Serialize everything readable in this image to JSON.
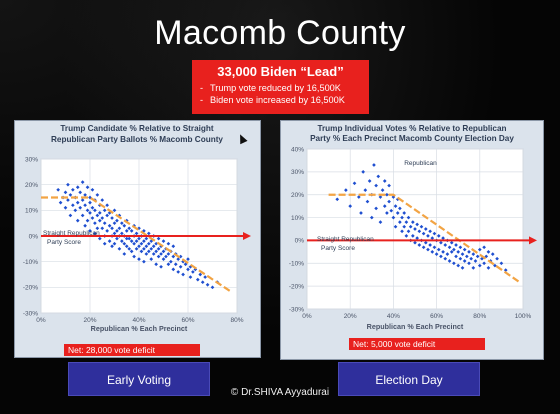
{
  "slide": {
    "title": "Macomb County",
    "lead_heading": "33,000 Biden “Lead”",
    "lead_bullets": [
      "Trump vote reduced by 16,500K",
      "Biden vote increased by 16,500K"
    ],
    "credit": "© Dr.SHIVA Ayyadurai",
    "buttons": {
      "early": "Early Voting",
      "election": "Election Day"
    },
    "net": {
      "left": "Net:  28,000 vote deficit",
      "right": "Net:  5,000 vote deficit"
    }
  },
  "colors": {
    "red": "#e8211e",
    "point_blue": "#1f4fd0",
    "trend_orange": "#f2a444",
    "button_blue": "#2f2f9c"
  },
  "chart_data": [
    {
      "type": "scatter",
      "title_lines": [
        "Trump Candidate % Relative to Straight",
        "Republican Party Ballots % Macomb County"
      ],
      "xlabel": "Republican % Each Precinct",
      "ylabel": "",
      "xlim": [
        0,
        80
      ],
      "ylim": [
        -30,
        30
      ],
      "x_ticks": [
        "0%",
        "20%",
        "40%",
        "60%",
        "80%"
      ],
      "x_tick_values": [
        0,
        20,
        40,
        60,
        80
      ],
      "y_ticks": [
        "30%",
        "20%",
        "10%",
        "0%",
        "-10%",
        "-20%",
        "-30%"
      ],
      "y_tick_values": [
        30,
        20,
        10,
        0,
        -10,
        -20,
        -30
      ],
      "annotation": [
        "Straight Republican",
        "Party Score"
      ],
      "reference_line_y": 0,
      "trend_line": [
        [
          0,
          15
        ],
        [
          20,
          15
        ],
        [
          78,
          -22
        ]
      ],
      "grid": true,
      "points": [
        [
          7,
          18
        ],
        [
          8,
          13
        ],
        [
          9,
          15
        ],
        [
          10,
          17
        ],
        [
          10,
          11
        ],
        [
          11,
          20
        ],
        [
          11,
          14
        ],
        [
          12,
          16
        ],
        [
          12,
          8
        ],
        [
          13,
          18
        ],
        [
          13,
          12
        ],
        [
          14,
          15
        ],
        [
          14,
          10
        ],
        [
          15,
          19
        ],
        [
          15,
          13
        ],
        [
          15,
          6
        ],
        [
          16,
          17
        ],
        [
          16,
          11
        ],
        [
          17,
          21
        ],
        [
          17,
          14
        ],
        [
          17,
          8
        ],
        [
          18,
          16
        ],
        [
          18,
          12
        ],
        [
          18,
          4
        ],
        [
          19,
          19
        ],
        [
          19,
          10
        ],
        [
          19,
          6
        ],
        [
          20,
          15
        ],
        [
          20,
          13
        ],
        [
          20,
          9
        ],
        [
          20,
          2
        ],
        [
          21,
          18
        ],
        [
          21,
          11
        ],
        [
          21,
          7
        ],
        [
          22,
          14
        ],
        [
          22,
          10
        ],
        [
          22,
          5
        ],
        [
          22,
          1
        ],
        [
          23,
          16
        ],
        [
          23,
          8
        ],
        [
          23,
          3
        ],
        [
          24,
          12
        ],
        [
          24,
          9
        ],
        [
          24,
          6
        ],
        [
          24,
          -1
        ],
        [
          25,
          14
        ],
        [
          25,
          7
        ],
        [
          25,
          3
        ],
        [
          26,
          10
        ],
        [
          26,
          5
        ],
        [
          26,
          0
        ],
        [
          26,
          -3
        ],
        [
          27,
          12
        ],
        [
          27,
          8
        ],
        [
          27,
          2
        ],
        [
          28,
          9
        ],
        [
          28,
          4
        ],
        [
          28,
          -2
        ],
        [
          29,
          7
        ],
        [
          29,
          3
        ],
        [
          29,
          0
        ],
        [
          29,
          -4
        ],
        [
          30,
          10
        ],
        [
          30,
          5
        ],
        [
          30,
          1
        ],
        [
          30,
          -3
        ],
        [
          31,
          6
        ],
        [
          31,
          2
        ],
        [
          31,
          -1
        ],
        [
          32,
          8
        ],
        [
          32,
          3
        ],
        [
          32,
          0
        ],
        [
          32,
          -5
        ],
        [
          33,
          5
        ],
        [
          33,
          1
        ],
        [
          33,
          -2
        ],
        [
          34,
          4
        ],
        [
          34,
          0
        ],
        [
          34,
          -3
        ],
        [
          34,
          -7
        ],
        [
          35,
          6
        ],
        [
          35,
          2
        ],
        [
          35,
          -1
        ],
        [
          35,
          -4
        ],
        [
          36,
          3
        ],
        [
          36,
          -1
        ],
        [
          36,
          -5
        ],
        [
          37,
          2
        ],
        [
          37,
          -2
        ],
        [
          37,
          -6
        ],
        [
          38,
          4
        ],
        [
          38,
          0
        ],
        [
          38,
          -3
        ],
        [
          38,
          -8
        ],
        [
          39,
          1
        ],
        [
          39,
          -2
        ],
        [
          39,
          -5
        ],
        [
          40,
          3
        ],
        [
          40,
          -1
        ],
        [
          40,
          -4
        ],
        [
          40,
          -9
        ],
        [
          41,
          0
        ],
        [
          41,
          -3
        ],
        [
          41,
          -6
        ],
        [
          42,
          2
        ],
        [
          42,
          -2
        ],
        [
          42,
          -5
        ],
        [
          42,
          -10
        ],
        [
          43,
          -1
        ],
        [
          43,
          -4
        ],
        [
          43,
          -7
        ],
        [
          44,
          1
        ],
        [
          44,
          -3
        ],
        [
          44,
          -6
        ],
        [
          45,
          -2
        ],
        [
          45,
          -5
        ],
        [
          45,
          -9
        ],
        [
          46,
          0
        ],
        [
          46,
          -4
        ],
        [
          46,
          -7
        ],
        [
          47,
          -3
        ],
        [
          47,
          -6
        ],
        [
          47,
          -11
        ],
        [
          48,
          -1
        ],
        [
          48,
          -5
        ],
        [
          48,
          -8
        ],
        [
          49,
          -4
        ],
        [
          49,
          -7
        ],
        [
          49,
          -12
        ],
        [
          50,
          -2
        ],
        [
          50,
          -6
        ],
        [
          50,
          -9
        ],
        [
          51,
          -5
        ],
        [
          51,
          -8
        ],
        [
          52,
          -3
        ],
        [
          52,
          -7
        ],
        [
          52,
          -11
        ],
        [
          53,
          -6
        ],
        [
          53,
          -10
        ],
        [
          54,
          -4
        ],
        [
          54,
          -8
        ],
        [
          54,
          -13
        ],
        [
          55,
          -7
        ],
        [
          55,
          -11
        ],
        [
          56,
          -9
        ],
        [
          56,
          -14
        ],
        [
          57,
          -8
        ],
        [
          57,
          -12
        ],
        [
          58,
          -10
        ],
        [
          58,
          -15
        ],
        [
          59,
          -11
        ],
        [
          60,
          -9
        ],
        [
          60,
          -13
        ],
        [
          61,
          -12
        ],
        [
          61,
          -16
        ],
        [
          62,
          -14
        ],
        [
          63,
          -13
        ],
        [
          64,
          -17
        ],
        [
          65,
          -15
        ],
        [
          66,
          -18
        ],
        [
          67,
          -16
        ],
        [
          68,
          -19
        ],
        [
          70,
          -20
        ],
        [
          72,
          -18
        ]
      ]
    },
    {
      "type": "scatter",
      "title_lines": [
        "Trump Individual Votes % Relative to Republican",
        "Party % Each Precinct Macomb County Election Day"
      ],
      "xlabel": "Republican % Each Precinct",
      "ylabel": "",
      "xlim": [
        0,
        100
      ],
      "ylim": [
        -30,
        40
      ],
      "x_ticks": [
        "0%",
        "20%",
        "40%",
        "60%",
        "80%",
        "100%"
      ],
      "x_tick_values": [
        0,
        20,
        40,
        60,
        80,
        100
      ],
      "y_ticks": [
        "40%",
        "30%",
        "20%",
        "10%",
        "0%",
        "-10%",
        "-20%",
        "-30%"
      ],
      "y_tick_values": [
        40,
        30,
        20,
        10,
        0,
        -10,
        -20,
        -30
      ],
      "annotation": [
        "Straight Republican",
        "Party Score"
      ],
      "series_label": "Republican",
      "reference_line_y": 0,
      "trend_line": [
        [
          10,
          20
        ],
        [
          40,
          20
        ],
        [
          98,
          -18
        ]
      ],
      "grid": true,
      "points": [
        [
          14,
          18
        ],
        [
          18,
          22
        ],
        [
          20,
          15
        ],
        [
          22,
          25
        ],
        [
          24,
          19
        ],
        [
          25,
          12
        ],
        [
          26,
          30
        ],
        [
          27,
          22
        ],
        [
          28,
          17
        ],
        [
          29,
          26
        ],
        [
          30,
          20
        ],
        [
          30,
          10
        ],
        [
          31,
          33
        ],
        [
          32,
          24
        ],
        [
          32,
          14
        ],
        [
          33,
          28
        ],
        [
          34,
          19
        ],
        [
          34,
          8
        ],
        [
          35,
          22
        ],
        [
          36,
          26
        ],
        [
          36,
          15
        ],
        [
          37,
          20
        ],
        [
          37,
          12
        ],
        [
          38,
          17
        ],
        [
          38,
          24
        ],
        [
          39,
          13
        ],
        [
          40,
          19
        ],
        [
          40,
          10
        ],
        [
          41,
          15
        ],
        [
          41,
          6
        ],
        [
          42,
          12
        ],
        [
          42,
          18
        ],
        [
          43,
          8
        ],
        [
          43,
          14
        ],
        [
          44,
          10
        ],
        [
          44,
          4
        ],
        [
          45,
          12
        ],
        [
          45,
          6
        ],
        [
          46,
          8
        ],
        [
          46,
          2
        ],
        [
          47,
          10
        ],
        [
          47,
          4
        ],
        [
          48,
          6
        ],
        [
          48,
          0
        ],
        [
          49,
          8
        ],
        [
          49,
          2
        ],
        [
          50,
          5
        ],
        [
          50,
          -1
        ],
        [
          51,
          7
        ],
        [
          51,
          1
        ],
        [
          52,
          4
        ],
        [
          52,
          -2
        ],
        [
          53,
          6
        ],
        [
          53,
          0
        ],
        [
          54,
          3
        ],
        [
          54,
          -3
        ],
        [
          55,
          5
        ],
        [
          55,
          -1
        ],
        [
          56,
          2
        ],
        [
          56,
          -4
        ],
        [
          57,
          4
        ],
        [
          57,
          -2
        ],
        [
          58,
          1
        ],
        [
          58,
          -5
        ],
        [
          59,
          3
        ],
        [
          59,
          -3
        ],
        [
          60,
          0
        ],
        [
          60,
          -6
        ],
        [
          61,
          2
        ],
        [
          61,
          -4
        ],
        [
          62,
          -1
        ],
        [
          62,
          -7
        ],
        [
          63,
          1
        ],
        [
          63,
          -5
        ],
        [
          64,
          -2
        ],
        [
          64,
          -8
        ],
        [
          65,
          0
        ],
        [
          65,
          -6
        ],
        [
          66,
          -3
        ],
        [
          66,
          -9
        ],
        [
          67,
          -1
        ],
        [
          67,
          -5
        ],
        [
          68,
          -4
        ],
        [
          68,
          -10
        ],
        [
          69,
          -2
        ],
        [
          69,
          -7
        ],
        [
          70,
          -5
        ],
        [
          70,
          -11
        ],
        [
          71,
          -3
        ],
        [
          71,
          -8
        ],
        [
          72,
          -6
        ],
        [
          72,
          -12
        ],
        [
          73,
          -4
        ],
        [
          73,
          -9
        ],
        [
          74,
          -7
        ],
        [
          75,
          -5
        ],
        [
          75,
          -10
        ],
        [
          76,
          -8
        ],
        [
          77,
          -6
        ],
        [
          77,
          -12
        ],
        [
          78,
          -9
        ],
        [
          79,
          -7
        ],
        [
          80,
          -11
        ],
        [
          80,
          -4
        ],
        [
          81,
          -8
        ],
        [
          82,
          -10
        ],
        [
          82,
          -3
        ],
        [
          83,
          -7
        ],
        [
          84,
          -12
        ],
        [
          84,
          -5
        ],
        [
          85,
          -9
        ],
        [
          86,
          -6
        ],
        [
          87,
          -11
        ],
        [
          88,
          -8
        ],
        [
          90,
          -10
        ],
        [
          92,
          -13
        ]
      ]
    }
  ]
}
